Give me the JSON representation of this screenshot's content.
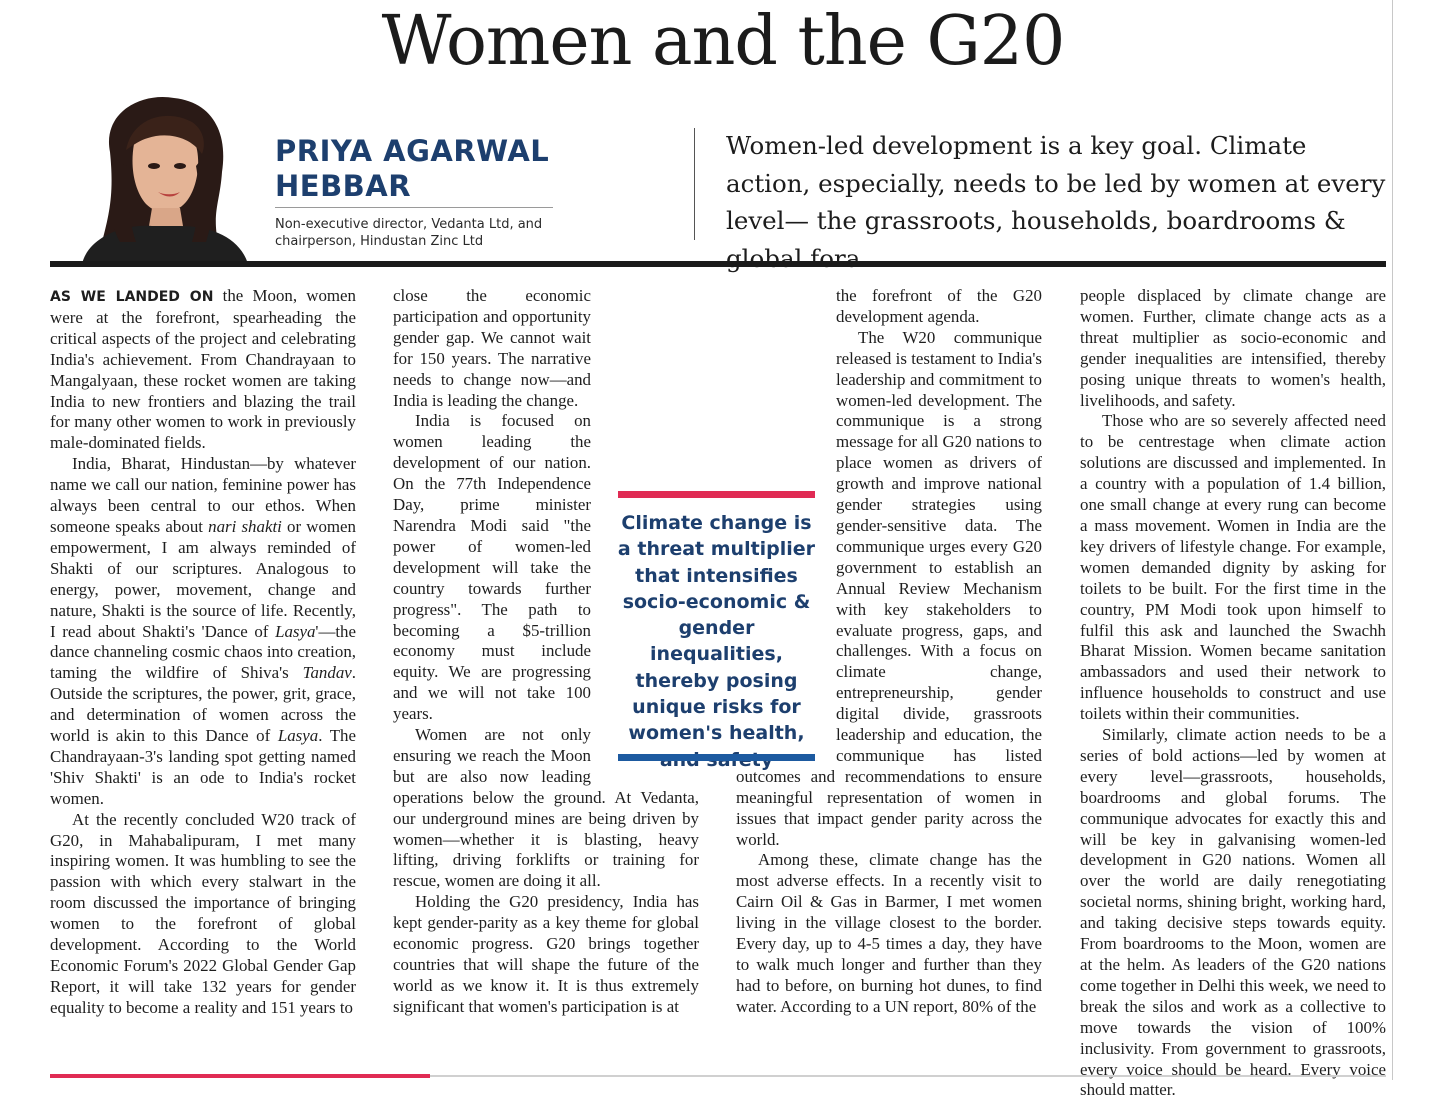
{
  "headline": "Women and the G20",
  "author": {
    "name_line1": "PRIYA AGARWAL",
    "name_line2": "HEBBAR",
    "title_line1": "Non-executive director, Vedanta Ltd, and",
    "title_line2": "chairperson, Hindustan Zinc Ltd"
  },
  "standfirst": "Women-led development is a key goal. Climate action, especially, needs to be led by women at every level— the grassroots, households, boardrooms & global fora",
  "pull_quote": "Climate change is a threat multiplier that intensifies socio-economic & gender inequalities, thereby posing unique risks for women's health, and safety",
  "colors": {
    "accent_blue": "#1d3f6e",
    "accent_pink": "#e02b54",
    "bar_blue": "#1d5aa0"
  },
  "body": {
    "lead_in": "AS WE LANDED ON",
    "p1_rest": " the Moon, women were at the forefront, spearheading the critical aspects of the project and celebrating India's achievement. From Chandrayaan to Mangalyaan, these rocket women are taking India to new frontiers and blazing the trail for many other women to work in previously male-dominated fields.",
    "p2a": "India, Bharat, Hindustan—by whatever name we call our nation, feminine power has always been central to our ethos. When someone speaks about ",
    "p2_italic1": "nari shakti",
    "p2b": " or women empowerment, I am always reminded of Shakti of our scriptures. Analogous to energy, power, movement, change and nature, Shakti is the source of life. Recently, I read about Shakti's 'Dance of ",
    "p2_italic2": "Lasya",
    "p2c": "'—the dance channeling cosmic chaos into creation, taming the wildfire of Shiva's ",
    "p2_italic3": "Tandav",
    "p2d": ". Outside the scriptures, the power, grit, grace, and determination of women across the world is akin to this Dance of ",
    "p2_italic4": "Lasya",
    "p2e": ". The Chandrayaan-3's landing spot getting named 'Shiv Shakti' is an ode to India's rocket women.",
    "p3": "At the recently concluded W20 track of G20, in Mahabalipuram, I met many inspiring women. It was humbling to see the passion with which every stalwart in the room discussed the importance of bringing women to the forefront of global development. According to the World Economic Forum's 2022 Global Gender Gap Report, it will take 132 years for gender equality to become a reality and 151 years to close the economic participation and opportunity gender gap. We cannot wait for 150 years. The narrative needs to change now—and India is leading the change.",
    "p4": "India is focused on women leading the development of our nation. On the 77th Independence Day, prime minister Narendra Modi said \"the power of women-led development will take the country towards further progress\". The path to becoming a $5-trillion economy must include equity. We are progressing and we will not take 100 years.",
    "p5": "Women are not only ensuring we reach the Moon but are also now leading operations below the ground. At Vedanta, our underground mines are being driven by women—whether it is blasting, heavy lifting, driving forklifts or training for rescue, women are doing it all.",
    "p6": "Holding the G20 presidency, India has kept gender-parity as a key theme for global economic progress. G20 brings together countries that will shape the future of the world as we know it. It is thus extremely significant that women's participation is at the forefront of the G20 development agenda.",
    "p7": "The W20 communique released is testament to India's leadership and commitment to women-led development. The communique is a strong message for all G20 nations to place women as drivers of growth and improve national gender strategies using gender-sensitive data. The communique urges every G20 government to establish an Annual Review Mechanism with key stakeholders to evaluate progress, gaps, and challenges. With a focus on climate change, entrepreneurship, gender digital divide, grassroots leadership and education, the communique has listed outcomes and recommendations to ensure meaningful representation of women in issues that impact gender parity across the world.",
    "p8": "Among these, climate change has the most adverse effects. In a recently visit to Cairn Oil & Gas in Barmer, I met women living in the village closest to the border. Every day, up to 4-5 times a day, they have to walk much longer and further than they had to before, on burning hot dunes, to find water. According to a UN report, 80% of the people displaced by climate change are women. Further, climate change acts as a threat multiplier as socio-economic and gender inequalities are intensified, thereby posing unique threats to women's health, livelihoods, and safety.",
    "p9": "Those who are so severely affected need to be centrestage when climate action solutions are discussed and implemented. In a country with a population of 1.4 billion, one small change at every rung can become a mass movement. Women in India are the key drivers of lifestyle change. For example, women demanded dignity by asking for toilets to be built. For the first time in the country, PM Modi took upon himself to fulfil this ask and launched the Swachh Bharat Mission. Women became sanitation ambassadors and used their network to influence households to construct and use toilets within their communities.",
    "p10": "Similarly, climate action needs to be a series of bold actions—led by women at every level—grassroots, households, boardrooms and global forums. The communique advocates for exactly this and will be key in galvanising women-led development in G20 nations. Women all over the world are daily renegotiating societal norms, shining bright, working hard, and taking decisive steps towards equity. From boardrooms to the Moon, women are at the helm. As leaders of the G20 nations come together in Delhi this week, we need to break the silos and work as a collective to move towards the vision of 100% inclusivity. From government to grassroots, every voice should be heard. Every voice should matter."
  }
}
